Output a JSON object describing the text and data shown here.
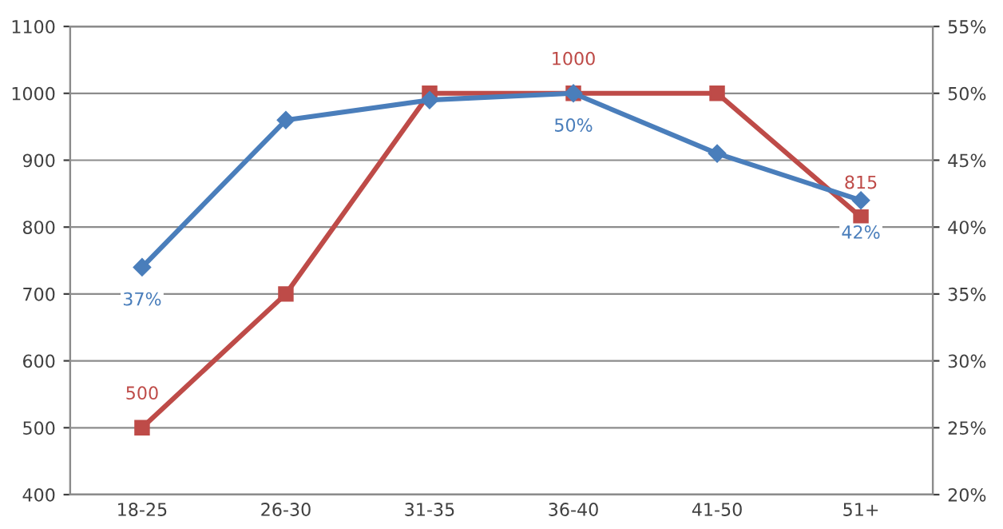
{
  "chart_data": {
    "type": "line",
    "categories": [
      "18-25",
      "26-30",
      "31-35",
      "36-40",
      "41-50",
      "51+"
    ],
    "series": [
      {
        "color": "#4a7ebb",
        "axis": "y2",
        "marker": "diamond",
        "values": [
          37,
          48,
          49.5,
          50,
          45.5,
          42
        ],
        "value_labels": [
          "37%",
          null,
          null,
          "50%",
          null,
          "42%"
        ]
      },
      {
        "color": "#be4b48",
        "marker": "square",
        "values": [
          500,
          700,
          1000,
          1000,
          1000,
          815
        ],
        "value_labels": [
          "500",
          null,
          null,
          "1000",
          null,
          "815"
        ]
      }
    ],
    "ylim": [
      400,
      1100
    ],
    "yticks": [
      400,
      500,
      600,
      700,
      800,
      900,
      1000,
      1100
    ],
    "y2lim": [
      20,
      55
    ],
    "y2ticks": [
      {
        "value": 20,
        "label": "20%"
      },
      {
        "value": 25,
        "label": "25%"
      },
      {
        "value": 30,
        "label": "30%"
      },
      {
        "value": 35,
        "label": "35%"
      },
      {
        "value": 40,
        "label": "40%"
      },
      {
        "value": 45,
        "label": "45%"
      },
      {
        "value": 50,
        "label": "50%"
      },
      {
        "value": 55,
        "label": "55%"
      }
    ],
    "grid": "y",
    "line_style": "solid"
  }
}
